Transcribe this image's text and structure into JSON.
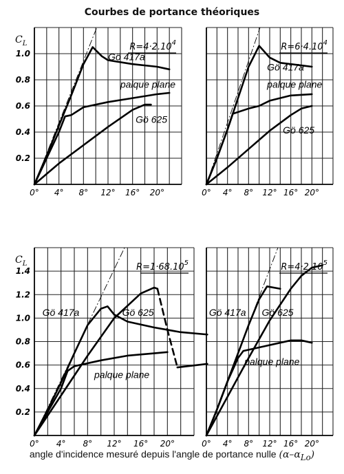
{
  "title": "Courbes de portance théoriques",
  "caption": {
    "text": "angle d'incidence mesuré depuis l'angle de portance nulle",
    "symbol": "(α–α",
    "symbol_sub": "Lo",
    "symbol_close": ")"
  },
  "y_axis_symbol": "C",
  "y_axis_symbol_sub": "L",
  "colors": {
    "ink": "#000000",
    "background": "#ffffff"
  },
  "chart_data": [
    {
      "type": "line",
      "panel": "top-left",
      "reynolds": "R=4·2.10",
      "reynolds_exp": "4",
      "xlim": [
        0,
        24
      ],
      "ylim": [
        0,
        1.2
      ],
      "x_ticks": [
        "0°",
        "4°",
        "8°",
        "12°",
        "16°",
        "20°"
      ],
      "y_ticks": [
        "0.2",
        "0.4",
        "0.6",
        "0.8",
        "1.0"
      ],
      "series": [
        {
          "name": "Gö 417a",
          "dashed_from": null,
          "points": [
            [
              0,
              0
            ],
            [
              2,
              0.22
            ],
            [
              4,
              0.45
            ],
            [
              6,
              0.68
            ],
            [
              8,
              0.92
            ],
            [
              9.5,
              1.05
            ],
            [
              11,
              0.98
            ],
            [
              12,
              0.95
            ],
            [
              16,
              0.92
            ],
            [
              20,
              0.9
            ],
            [
              22,
              0.88
            ]
          ]
        },
        {
          "name": "palque plane",
          "dashed_from": null,
          "points": [
            [
              0,
              0
            ],
            [
              2,
              0.2
            ],
            [
              4,
              0.4
            ],
            [
              5,
              0.52
            ],
            [
              6,
              0.53
            ],
            [
              8,
              0.59
            ],
            [
              12,
              0.63
            ],
            [
              16,
              0.66
            ],
            [
              20,
              0.69
            ],
            [
              22,
              0.7
            ]
          ]
        },
        {
          "name": "Gö 625",
          "dashed_from": null,
          "points": [
            [
              0,
              0
            ],
            [
              2,
              0.08
            ],
            [
              4,
              0.16
            ],
            [
              8,
              0.3
            ],
            [
              12,
              0.44
            ],
            [
              16,
              0.57
            ],
            [
              18,
              0.61
            ],
            [
              19,
              0.61
            ]
          ]
        }
      ],
      "labels": [
        {
          "text": "Gö 417a",
          "at": [
            12,
            0.95
          ]
        },
        {
          "text": "palque plane",
          "at": [
            14,
            0.74
          ]
        },
        {
          "text": "Gö 625",
          "at": [
            16.5,
            0.47
          ]
        }
      ]
    },
    {
      "type": "line",
      "panel": "top-right",
      "reynolds": "R=6·4.10",
      "reynolds_exp": "4",
      "xlim": [
        0,
        24
      ],
      "ylim": [
        0,
        1.2
      ],
      "x_ticks": [
        "0°",
        "4°",
        "8°",
        "12°",
        "16°",
        "20°"
      ],
      "y_ticks": [],
      "series": [
        {
          "name": "Gö 417a",
          "dashed_from": null,
          "points": [
            [
              0,
              0
            ],
            [
              2,
              0.2
            ],
            [
              4,
              0.42
            ],
            [
              6,
              0.66
            ],
            [
              8,
              0.9
            ],
            [
              10,
              1.06
            ],
            [
              12,
              0.97
            ],
            [
              14,
              0.93
            ],
            [
              18,
              0.91
            ],
            [
              20,
              0.9
            ]
          ]
        },
        {
          "name": "palque plane",
          "dashed_from": null,
          "points": [
            [
              0,
              0
            ],
            [
              2,
              0.2
            ],
            [
              4,
              0.42
            ],
            [
              5,
              0.54
            ],
            [
              8,
              0.58
            ],
            [
              10,
              0.6
            ],
            [
              12,
              0.64
            ],
            [
              16,
              0.68
            ],
            [
              20,
              0.69
            ]
          ]
        },
        {
          "name": "Gö 625",
          "dashed_from": null,
          "points": [
            [
              0,
              0
            ],
            [
              4,
              0.13
            ],
            [
              8,
              0.27
            ],
            [
              12,
              0.41
            ],
            [
              16,
              0.53
            ],
            [
              18,
              0.58
            ],
            [
              20,
              0.6
            ]
          ]
        }
      ],
      "labels": [
        {
          "text": "Gö 417a",
          "at": [
            11.5,
            0.87
          ]
        },
        {
          "text": "palque plane",
          "at": [
            11.5,
            0.74
          ]
        },
        {
          "text": "Gö 625",
          "at": [
            14.5,
            0.39
          ]
        }
      ]
    },
    {
      "type": "line",
      "panel": "bottom-left",
      "reynolds": "R=1·68.10",
      "reynolds_exp": "5",
      "xlim": [
        0,
        24
      ],
      "ylim": [
        0,
        1.6
      ],
      "x_ticks": [
        "0°",
        "4°",
        "8°",
        "12°",
        "16°",
        "20°"
      ],
      "y_ticks": [
        "0.2",
        "0.4",
        "0.6",
        "0.8",
        "1.0",
        "1.2",
        "1.4"
      ],
      "series": [
        {
          "name": "Gö 417a",
          "dashed_from": null,
          "points": [
            [
              0,
              0
            ],
            [
              2,
              0.22
            ],
            [
              4,
              0.45
            ],
            [
              6,
              0.7
            ],
            [
              8,
              0.94
            ],
            [
              10,
              1.08
            ],
            [
              11,
              1.1
            ],
            [
              12,
              1.03
            ],
            [
              14,
              0.97
            ],
            [
              18,
              0.92
            ],
            [
              22,
              0.88
            ],
            [
              26,
              0.86
            ]
          ]
        },
        {
          "name": "palque plane",
          "dashed_from": null,
          "points": [
            [
              0,
              0
            ],
            [
              2,
              0.2
            ],
            [
              4,
              0.4
            ],
            [
              5,
              0.55
            ],
            [
              6,
              0.59
            ],
            [
              10,
              0.64
            ],
            [
              14,
              0.68
            ],
            [
              18,
              0.7
            ],
            [
              20,
              0.71
            ]
          ]
        },
        {
          "name": "Gö 625",
          "dashed_from": 18.5,
          "points": [
            [
              0,
              0
            ],
            [
              4,
              0.34
            ],
            [
              8,
              0.68
            ],
            [
              12,
              1.0
            ],
            [
              16,
              1.21
            ],
            [
              18,
              1.26
            ],
            [
              18.5,
              1.25
            ],
            [
              20,
              0.9
            ],
            [
              21.5,
              0.58
            ],
            [
              23,
              0.59
            ],
            [
              26,
              0.61
            ]
          ]
        }
      ],
      "labels": [
        {
          "text": "Gö 417a",
          "at": [
            1.2,
            1.02
          ]
        },
        {
          "text": "Gö 625",
          "at": [
            13.2,
            1.02
          ]
        },
        {
          "text": "palque plane",
          "at": [
            9,
            0.49
          ]
        }
      ]
    },
    {
      "type": "line",
      "panel": "bottom-right",
      "reynolds": "R=4·2.10",
      "reynolds_exp": "5",
      "xlim": [
        0,
        24
      ],
      "ylim": [
        0,
        1.6
      ],
      "x_ticks": [
        "0°",
        "4°",
        "8°",
        "12°",
        "16°",
        "20°"
      ],
      "y_ticks": [],
      "series": [
        {
          "name": "Gö 417a",
          "dashed_from": null,
          "points": [
            [
              0,
              0
            ],
            [
              2,
              0.22
            ],
            [
              4,
              0.46
            ],
            [
              6,
              0.7
            ],
            [
              8,
              0.94
            ],
            [
              10,
              1.16
            ],
            [
              11.5,
              1.27
            ],
            [
              14,
              1.25
            ]
          ]
        },
        {
          "name": "palque plane",
          "dashed_from": null,
          "points": [
            [
              0,
              0
            ],
            [
              2,
              0.22
            ],
            [
              4,
              0.46
            ],
            [
              6,
              0.66
            ],
            [
              7,
              0.72
            ],
            [
              10,
              0.75
            ],
            [
              14,
              0.79
            ],
            [
              16,
              0.81
            ],
            [
              18,
              0.81
            ],
            [
              20,
              0.79
            ]
          ]
        },
        {
          "name": "Gö 625",
          "dashed_from": null,
          "points": [
            [
              0,
              0
            ],
            [
              4,
              0.33
            ],
            [
              8,
              0.66
            ],
            [
              12,
              0.98
            ],
            [
              16,
              1.25
            ],
            [
              18,
              1.36
            ],
            [
              20,
              1.43
            ],
            [
              22,
              1.45
            ]
          ]
        }
      ],
      "labels": [
        {
          "text": "Gö 417a",
          "at": [
            0.5,
            1.02
          ]
        },
        {
          "text": "Gö 625",
          "at": [
            10.5,
            1.02
          ]
        },
        {
          "text": "palque plane",
          "at": [
            7.2,
            0.6
          ]
        }
      ]
    }
  ]
}
